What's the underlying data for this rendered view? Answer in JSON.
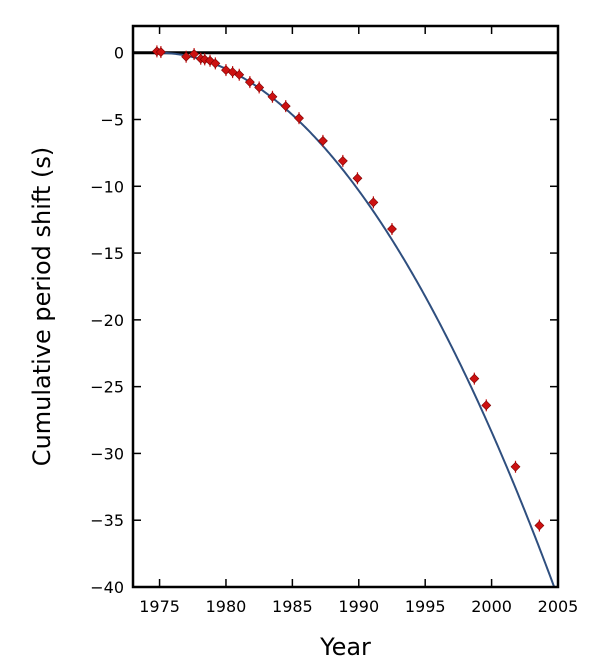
{
  "chart_data": {
    "type": "scatter",
    "xlabel": "Year",
    "ylabel": "Cumulative period shift (s)",
    "xlim": [
      1973,
      2005
    ],
    "ylim": [
      -40,
      2
    ],
    "xticks": [
      1975,
      1980,
      1985,
      1990,
      1995,
      2000,
      2005
    ],
    "yticks": [
      0,
      -5,
      -10,
      -15,
      -20,
      -25,
      -30,
      -35,
      -40
    ],
    "xtick_labels": [
      "1975",
      "1980",
      "1985",
      "1990",
      "1995",
      "2000",
      "2005"
    ],
    "ytick_labels": [
      "0",
      "−5",
      "−10",
      "−15",
      "−20",
      "−25",
      "−30",
      "−35",
      "−40"
    ],
    "grid": false,
    "reference_line": {
      "y": 0,
      "color": "#000000"
    },
    "fit_curve": {
      "type": "quadratic",
      "reference_year": 1974.8,
      "coefficient": -0.0447,
      "color": "#2f4f7f"
    },
    "marker_color": "#cc1111",
    "points": [
      {
        "x": 1974.8,
        "y": 0.1
      },
      {
        "x": 1975.1,
        "y": 0.05
      },
      {
        "x": 1977.0,
        "y": -0.3
      },
      {
        "x": 1977.6,
        "y": -0.1
      },
      {
        "x": 1978.1,
        "y": -0.45
      },
      {
        "x": 1978.4,
        "y": -0.5
      },
      {
        "x": 1978.8,
        "y": -0.6
      },
      {
        "x": 1979.2,
        "y": -0.8
      },
      {
        "x": 1980.0,
        "y": -1.3
      },
      {
        "x": 1980.5,
        "y": -1.45
      },
      {
        "x": 1981.0,
        "y": -1.65
      },
      {
        "x": 1981.8,
        "y": -2.2
      },
      {
        "x": 1982.5,
        "y": -2.6
      },
      {
        "x": 1983.5,
        "y": -3.3
      },
      {
        "x": 1984.5,
        "y": -4.0
      },
      {
        "x": 1985.5,
        "y": -4.9
      },
      {
        "x": 1987.3,
        "y": -6.6
      },
      {
        "x": 1988.8,
        "y": -8.1
      },
      {
        "x": 1989.9,
        "y": -9.4
      },
      {
        "x": 1991.1,
        "y": -11.2
      },
      {
        "x": 1992.5,
        "y": -13.2
      },
      {
        "x": 1998.7,
        "y": -24.4
      },
      {
        "x": 1999.6,
        "y": -26.4
      },
      {
        "x": 2001.8,
        "y": -31.0
      },
      {
        "x": 2003.6,
        "y": -35.4
      }
    ]
  }
}
